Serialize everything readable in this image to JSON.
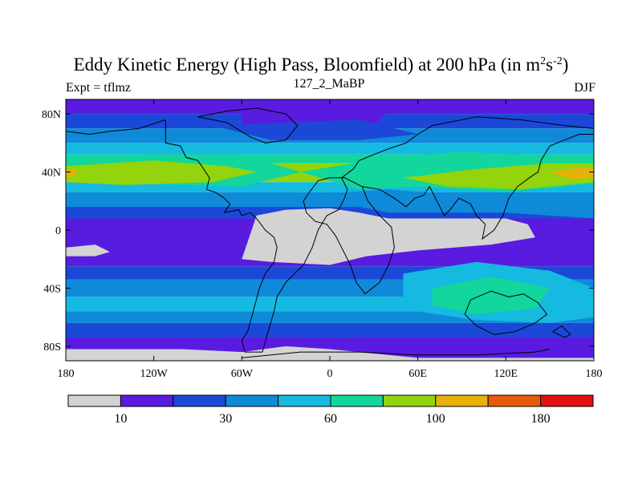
{
  "chart_data": {
    "type": "heatmap",
    "title_main": "Eddy Kinetic Energy (High Pass, Bloomfield) at 200 hPa (in m",
    "title_sup1": "2",
    "title_mid": "s",
    "title_sup2": "-2",
    "title_end": ")",
    "left_subtitle": "Expt = tflmz",
    "center_subtitle": "127_2_MaBP",
    "right_subtitle": "DJF",
    "x_ticks": [
      {
        "value": -180,
        "label": "180"
      },
      {
        "value": -120,
        "label": "120W"
      },
      {
        "value": -60,
        "label": "60W"
      },
      {
        "value": 0,
        "label": "0"
      },
      {
        "value": 60,
        "label": "60E"
      },
      {
        "value": 120,
        "label": "120E"
      },
      {
        "value": 180,
        "label": "180"
      }
    ],
    "y_ticks": [
      {
        "value": 80,
        "label": "80N"
      },
      {
        "value": 40,
        "label": "40N"
      },
      {
        "value": 0,
        "label": "0"
      },
      {
        "value": -40,
        "label": "40S"
      },
      {
        "value": -80,
        "label": "80S"
      }
    ],
    "xlim": [
      -180,
      180
    ],
    "ylim": [
      -90,
      90
    ],
    "colorbar": {
      "colors": [
        "#d3d3d3",
        "#5a1be0",
        "#1c48d8",
        "#0f8ad9",
        "#16b9e0",
        "#12d69b",
        "#93d40c",
        "#e6b10b",
        "#e85a0b",
        "#e0110e"
      ],
      "labels": [
        {
          "boundary": 1,
          "label": "10"
        },
        {
          "boundary": 3,
          "label": "30"
        },
        {
          "boundary": 5,
          "label": "60"
        },
        {
          "boundary": 7,
          "label": "100"
        },
        {
          "boundary": 9,
          "label": "180"
        }
      ]
    },
    "bands": [
      {
        "lat_top": 90,
        "lat_bot": 80,
        "color": "#5a1be0"
      },
      {
        "lat_top": 80,
        "lat_bot": 70,
        "color": "#1c48d8"
      },
      {
        "lat_top": 70,
        "lat_bot": 60,
        "color": "#0f8ad9"
      },
      {
        "lat_top": 60,
        "lat_bot": 52,
        "color": "#16b9e0"
      },
      {
        "lat_top": 52,
        "lat_bot": 46,
        "color": "#12d69b"
      },
      {
        "lat_top": 46,
        "lat_bot": 33,
        "color": "#93d40c"
      },
      {
        "lat_top": 33,
        "lat_bot": 26,
        "color": "#16b9e0"
      },
      {
        "lat_top": 26,
        "lat_bot": 16,
        "color": "#0f8ad9"
      },
      {
        "lat_top": 16,
        "lat_bot": 8,
        "color": "#1c48d8"
      },
      {
        "lat_top": 8,
        "lat_bot": -25,
        "color": "#5a1be0"
      },
      {
        "lat_top": -25,
        "lat_bot": -34,
        "color": "#1c48d8"
      },
      {
        "lat_top": -34,
        "lat_bot": -46,
        "color": "#0f8ad9"
      },
      {
        "lat_top": -46,
        "lat_bot": -56,
        "color": "#16b9e0"
      },
      {
        "lat_top": -56,
        "lat_bot": -64,
        "color": "#0f8ad9"
      },
      {
        "lat_top": -64,
        "lat_bot": -74,
        "color": "#1c48d8"
      },
      {
        "lat_top": -74,
        "lat_bot": -90,
        "color": "#5a1be0"
      }
    ],
    "patches": [
      {
        "color": "#5a1be0",
        "points": [
          [
            -60,
            90
          ],
          [
            20,
            90
          ],
          [
            40,
            82
          ],
          [
            30,
            72
          ],
          [
            -20,
            70
          ],
          [
            -60,
            72
          ]
        ]
      },
      {
        "color": "#1c48d8",
        "points": [
          [
            -80,
            72
          ],
          [
            20,
            76
          ],
          [
            60,
            66
          ],
          [
            20,
            62
          ],
          [
            -40,
            62
          ]
        ]
      },
      {
        "color": "#12d69b",
        "points": [
          [
            -130,
            52
          ],
          [
            -60,
            52
          ],
          [
            -20,
            40
          ],
          [
            -60,
            30
          ],
          [
            -140,
            32
          ],
          [
            -180,
            36
          ],
          [
            -180,
            46
          ]
        ]
      },
      {
        "color": "#93d40c",
        "points": [
          [
            -180,
            44
          ],
          [
            -120,
            48
          ],
          [
            -70,
            44
          ],
          [
            -50,
            40
          ],
          [
            -80,
            33
          ],
          [
            -140,
            31
          ],
          [
            -180,
            33
          ]
        ]
      },
      {
        "color": "#e6b10b",
        "points": [
          [
            -180,
            41
          ],
          [
            -175,
            42
          ],
          [
            -172,
            38
          ],
          [
            -180,
            36
          ]
        ]
      },
      {
        "color": "#12d69b",
        "points": [
          [
            -20,
            40
          ],
          [
            40,
            50
          ],
          [
            90,
            54
          ],
          [
            130,
            52
          ],
          [
            180,
            50
          ],
          [
            180,
            32
          ],
          [
            120,
            26
          ],
          [
            60,
            30
          ],
          [
            20,
            28
          ]
        ]
      },
      {
        "color": "#93d40c",
        "points": [
          [
            50,
            36
          ],
          [
            100,
            42
          ],
          [
            150,
            46
          ],
          [
            180,
            46
          ],
          [
            180,
            33
          ],
          [
            130,
            28
          ],
          [
            80,
            30
          ]
        ]
      },
      {
        "color": "#e6b10b",
        "points": [
          [
            150,
            40
          ],
          [
            170,
            43
          ],
          [
            180,
            42
          ],
          [
            180,
            36
          ],
          [
            165,
            35
          ]
        ]
      },
      {
        "color": "#0f8ad9",
        "points": [
          [
            -20,
            24
          ],
          [
            40,
            28
          ],
          [
            120,
            22
          ],
          [
            180,
            18
          ],
          [
            180,
            8
          ],
          [
            120,
            12
          ],
          [
            40,
            12
          ]
        ]
      },
      {
        "color": "#d3d3d3",
        "points": [
          [
            -180,
            -12
          ],
          [
            -160,
            -10
          ],
          [
            -150,
            -15
          ],
          [
            -160,
            -18
          ],
          [
            -180,
            -18
          ]
        ]
      },
      {
        "color": "#d3d3d3",
        "points": [
          [
            -50,
            10
          ],
          [
            -30,
            14
          ],
          [
            0,
            15
          ],
          [
            20,
            12
          ],
          [
            40,
            8
          ],
          [
            80,
            8
          ],
          [
            120,
            8
          ],
          [
            135,
            4
          ],
          [
            140,
            -5
          ],
          [
            110,
            -10
          ],
          [
            60,
            -14
          ],
          [
            25,
            -18
          ],
          [
            0,
            -24
          ],
          [
            -40,
            -22
          ],
          [
            -60,
            -20
          ],
          [
            -55,
            -5
          ]
        ]
      },
      {
        "color": "#16b9e0",
        "points": [
          [
            50,
            -30
          ],
          [
            100,
            -22
          ],
          [
            150,
            -28
          ],
          [
            180,
            -40
          ],
          [
            180,
            -60
          ],
          [
            150,
            -64
          ],
          [
            100,
            -62
          ],
          [
            60,
            -56
          ],
          [
            50,
            -45
          ]
        ]
      },
      {
        "color": "#12d69b",
        "points": [
          [
            70,
            -40
          ],
          [
            110,
            -32
          ],
          [
            150,
            -40
          ],
          [
            140,
            -54
          ],
          [
            100,
            -58
          ],
          [
            70,
            -52
          ]
        ]
      },
      {
        "color": "#d3d3d3",
        "points": [
          [
            -180,
            -82
          ],
          [
            -100,
            -82
          ],
          [
            -60,
            -84
          ],
          [
            -30,
            -80
          ],
          [
            0,
            -82
          ],
          [
            60,
            -88
          ],
          [
            180,
            -88
          ],
          [
            180,
            -90
          ],
          [
            -180,
            -90
          ]
        ]
      }
    ],
    "coastlines": [
      [
        [
          -112,
          76
        ],
        [
          -112,
          60
        ],
        [
          -102,
          58
        ],
        [
          -98,
          50
        ],
        [
          -90,
          48
        ],
        [
          -82,
          36
        ],
        [
          -84,
          28
        ],
        [
          -78,
          26
        ],
        [
          -72,
          22
        ],
        [
          -68,
          18
        ],
        [
          -72,
          12
        ],
        [
          -62,
          14
        ],
        [
          -60,
          10
        ],
        [
          -54,
          12
        ],
        [
          -50,
          8
        ],
        [
          -44,
          0
        ],
        [
          -38,
          -5
        ],
        [
          -36,
          -12
        ],
        [
          -38,
          -22
        ],
        [
          -44,
          -30
        ],
        [
          -48,
          -40
        ],
        [
          -52,
          -55
        ],
        [
          -56,
          -70
        ],
        [
          -60,
          -76
        ],
        [
          -58,
          -84
        ],
        [
          -46,
          -84
        ],
        [
          -42,
          -70
        ],
        [
          -38,
          -56
        ],
        [
          -36,
          -46
        ],
        [
          -30,
          -36
        ],
        [
          -24,
          -30
        ],
        [
          -18,
          -24
        ],
        [
          -12,
          -12
        ],
        [
          -8,
          0
        ],
        [
          -2,
          10
        ],
        [
          6,
          14
        ],
        [
          10,
          22
        ],
        [
          12,
          28
        ],
        [
          8,
          36
        ],
        [
          16,
          42
        ],
        [
          20,
          48
        ],
        [
          30,
          52
        ],
        [
          40,
          56
        ],
        [
          52,
          60
        ],
        [
          60,
          66
        ],
        [
          70,
          72
        ],
        [
          80,
          74
        ],
        [
          100,
          78
        ],
        [
          130,
          76
        ],
        [
          160,
          72
        ],
        [
          180,
          70
        ]
      ],
      [
        [
          -180,
          68
        ],
        [
          -164,
          66
        ],
        [
          -150,
          68
        ],
        [
          -130,
          70
        ],
        [
          -112,
          76
        ]
      ],
      [
        [
          -90,
          78
        ],
        [
          -70,
          82
        ],
        [
          -50,
          84
        ],
        [
          -30,
          80
        ],
        [
          -22,
          72
        ],
        [
          -30,
          62
        ],
        [
          -44,
          60
        ],
        [
          -54,
          64
        ],
        [
          -70,
          74
        ],
        [
          -90,
          78
        ]
      ],
      [
        [
          22,
          30
        ],
        [
          34,
          28
        ],
        [
          44,
          22
        ],
        [
          52,
          16
        ],
        [
          58,
          22
        ],
        [
          64,
          24
        ],
        [
          68,
          30
        ],
        [
          72,
          22
        ],
        [
          78,
          10
        ],
        [
          82,
          14
        ],
        [
          88,
          22
        ],
        [
          96,
          18
        ],
        [
          100,
          10
        ],
        [
          106,
          4
        ],
        [
          104,
          -6
        ],
        [
          112,
          0
        ],
        [
          118,
          10
        ],
        [
          122,
          22
        ],
        [
          128,
          30
        ],
        [
          136,
          36
        ],
        [
          142,
          40
        ],
        [
          144,
          48
        ],
        [
          150,
          58
        ],
        [
          160,
          62
        ],
        [
          170,
          66
        ],
        [
          180,
          66
        ]
      ],
      [
        [
          22,
          30
        ],
        [
          26,
          20
        ],
        [
          34,
          10
        ],
        [
          42,
          2
        ],
        [
          44,
          -12
        ],
        [
          40,
          -24
        ],
        [
          34,
          -36
        ],
        [
          24,
          -44
        ],
        [
          18,
          -36
        ],
        [
          14,
          -24
        ],
        [
          8,
          -12
        ],
        [
          4,
          -4
        ],
        [
          -2,
          4
        ],
        [
          -10,
          6
        ],
        [
          -16,
          12
        ],
        [
          -18,
          20
        ],
        [
          -14,
          26
        ],
        [
          -8,
          34
        ],
        [
          0,
          36
        ],
        [
          10,
          36
        ],
        [
          22,
          30
        ]
      ],
      [
        [
          96,
          -48
        ],
        [
          110,
          -42
        ],
        [
          122,
          -46
        ],
        [
          132,
          -44
        ],
        [
          142,
          -50
        ],
        [
          148,
          -58
        ],
        [
          140,
          -64
        ],
        [
          126,
          -70
        ],
        [
          112,
          -72
        ],
        [
          100,
          -66
        ],
        [
          92,
          -58
        ],
        [
          96,
          -48
        ]
      ],
      [
        [
          152,
          -70
        ],
        [
          160,
          -74
        ],
        [
          164,
          -72
        ],
        [
          158,
          -66
        ],
        [
          152,
          -70
        ]
      ],
      [
        [
          -60,
          -88
        ],
        [
          -20,
          -84
        ],
        [
          20,
          -84
        ],
        [
          60,
          -86
        ],
        [
          100,
          -86
        ],
        [
          140,
          -84
        ],
        [
          150,
          -82
        ]
      ]
    ]
  }
}
